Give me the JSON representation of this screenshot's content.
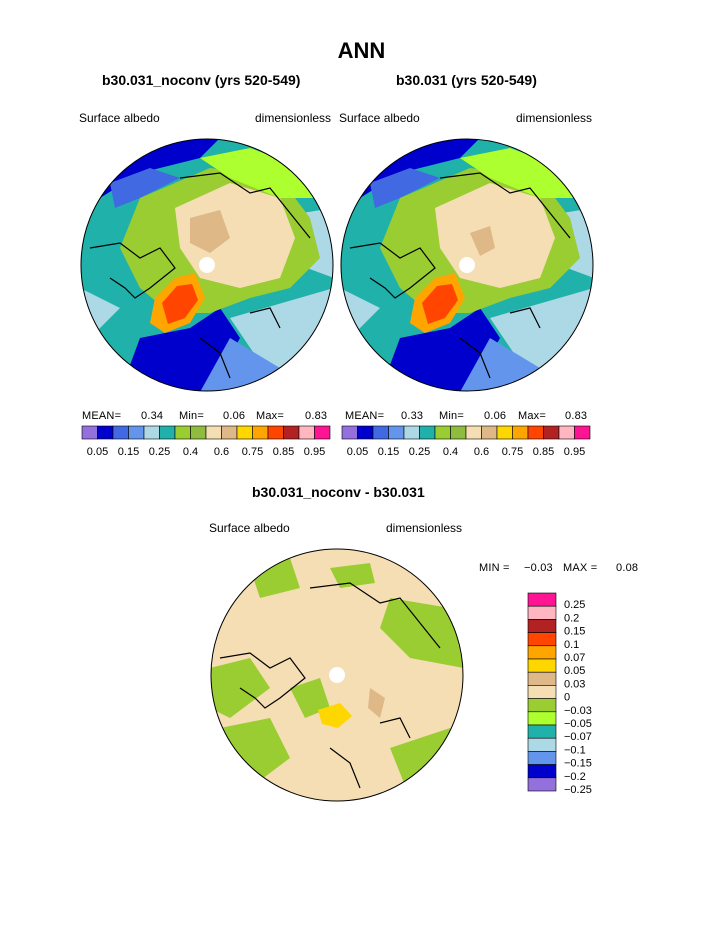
{
  "page_title": "ANN",
  "palette_main": [
    "#9370db",
    "#0000cd",
    "#4169e1",
    "#6495ed",
    "#add8e6",
    "#20b2aa",
    "#9acd32",
    "#8fbc3f",
    "#f5deb3",
    "#deb887",
    "#ffd700",
    "#ffa500",
    "#ff4500",
    "#b22222",
    "#ffb6c1",
    "#ff1493"
  ],
  "palette_diff": [
    "#ff1493",
    "#ffb6c1",
    "#b22222",
    "#ff4500",
    "#ffa500",
    "#ffd700",
    "#deb887",
    "#f5deb3",
    "#9acd32",
    "#adff2f",
    "#20b2aa",
    "#add8e6",
    "#6495ed",
    "#0000cd",
    "#9370db"
  ],
  "panels": [
    {
      "title": "b30.031_noconv (yrs 520-549)",
      "var_label": "Surface albedo",
      "units": "dimensionless",
      "mean_label": "MEAN=",
      "mean": "0.34",
      "min_label": "Min=",
      "min": "0.06",
      "max_label": "Max=",
      "max": "0.83"
    },
    {
      "title": "b30.031 (yrs 520-549)",
      "var_label": "Surface albedo",
      "units": "dimensionless",
      "mean_label": "MEAN=",
      "mean": "0.33",
      "min_label": "Min=",
      "min": "0.06",
      "max_label": "Max=",
      "max": "0.83"
    }
  ],
  "main_colorbar_labels": [
    "0.05",
    "0.15",
    "0.25",
    "0.4",
    "0.6",
    "0.75",
    "0.85",
    "0.95"
  ],
  "diff": {
    "title": "b30.031_noconv - b30.031",
    "var_label": "Surface albedo",
    "units": "dimensionless",
    "min_label": "MIN =",
    "min": "−0.03",
    "max_label": "MAX =",
    "max": "0.08",
    "colorbar_labels": [
      "0.25",
      "0.2",
      "0.15",
      "0.1",
      "0.07",
      "0.05",
      "0.03",
      "0",
      "−0.03",
      "−0.05",
      "−0.07",
      "−0.1",
      "−0.15",
      "−0.2",
      "−0.25"
    ]
  },
  "chart_data": [
    {
      "type": "heatmap",
      "title": "b30.031_noconv (yrs 520-549)",
      "variable": "Surface albedo",
      "units": "dimensionless",
      "stats": {
        "mean": 0.34,
        "min": 0.06,
        "max": 0.83
      },
      "levels": [
        0.05,
        0.1,
        0.15,
        0.2,
        0.25,
        0.3,
        0.4,
        0.5,
        0.6,
        0.7,
        0.75,
        0.8,
        0.85,
        0.9,
        0.95
      ]
    },
    {
      "type": "heatmap",
      "title": "b30.031 (yrs 520-549)",
      "variable": "Surface albedo",
      "units": "dimensionless",
      "stats": {
        "mean": 0.33,
        "min": 0.06,
        "max": 0.83
      },
      "levels": [
        0.05,
        0.1,
        0.15,
        0.2,
        0.25,
        0.3,
        0.4,
        0.5,
        0.6,
        0.7,
        0.75,
        0.8,
        0.85,
        0.9,
        0.95
      ]
    },
    {
      "type": "heatmap",
      "title": "b30.031_noconv - b30.031",
      "variable": "Surface albedo",
      "units": "dimensionless",
      "stats": {
        "min": -0.03,
        "max": 0.08
      },
      "levels": [
        -0.25,
        -0.2,
        -0.15,
        -0.1,
        -0.07,
        -0.05,
        -0.03,
        0,
        0.03,
        0.05,
        0.07,
        0.1,
        0.15,
        0.2,
        0.25
      ]
    }
  ]
}
